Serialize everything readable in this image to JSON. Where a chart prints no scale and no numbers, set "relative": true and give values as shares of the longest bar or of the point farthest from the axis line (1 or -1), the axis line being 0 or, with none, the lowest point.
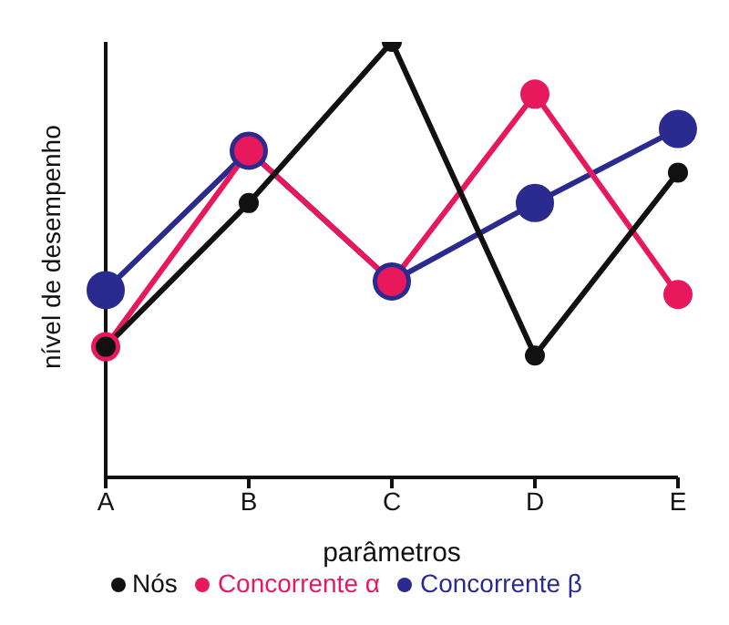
{
  "chart_data": {
    "type": "line",
    "relative": true,
    "xlabel": "parâmetros",
    "ylabel": "nível de desempenho",
    "categories": [
      "A",
      "B",
      "C",
      "D",
      "E"
    ],
    "legend": "bottom",
    "marker": "circle",
    "series": [
      {
        "name": "Nós",
        "color": "#111111",
        "values": [
          0.3,
          0.63,
          1,
          0.28,
          0.7
        ]
      },
      {
        "name": "Concorrente α",
        "color": "#e8185c",
        "values": [
          0.3,
          0.75,
          0.45,
          0.88,
          0.42
        ]
      },
      {
        "name": "Concorrente β",
        "color": "#2b2b8f",
        "values": [
          0.43,
          0.75,
          0.45,
          0.63,
          0.8
        ]
      }
    ]
  }
}
